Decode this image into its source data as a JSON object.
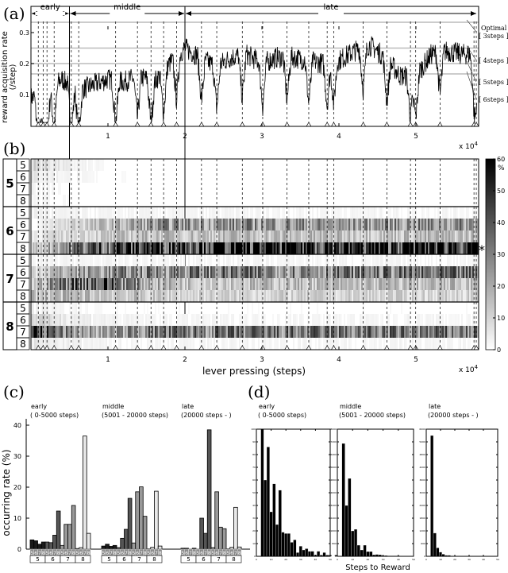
{
  "panel_labels": {
    "a": "(a)",
    "b": "(b)",
    "c": "(c)",
    "d": "(d)"
  },
  "chart_data": [
    {
      "id": "a",
      "type": "line",
      "ylabel": "reward acquisition rate",
      "ylabel2": "(/step)",
      "xlim": [
        0,
        58000
      ],
      "ylim": [
        0,
        0.34
      ],
      "xticks": [
        10000,
        20000,
        30000,
        40000,
        50000
      ],
      "xtick_labels": [
        "1",
        "2",
        "3",
        "4",
        "5"
      ],
      "yticks": [
        0.1,
        0.2,
        0.3
      ],
      "ytick_labels": [
        "0.1",
        "0.2",
        "0.3"
      ],
      "x_multiplier": "x 10",
      "x_multiplier_exp": "4",
      "phases": [
        {
          "label": "early",
          "start": 0,
          "end": 5000
        },
        {
          "label": "middle",
          "start": 5000,
          "end": 20000
        },
        {
          "label": "late",
          "start": 20000,
          "end": 58000
        }
      ],
      "reference_lines": [
        {
          "value": 0.3333,
          "label": "Optimal",
          "label2": "[ 3steps ]"
        },
        {
          "value": 0.25,
          "label": "[ 4steps ]"
        },
        {
          "value": 0.2,
          "label": "[ 5steps ]"
        },
        {
          "value": 0.1667,
          "label": "[ 6steps ]"
        }
      ],
      "bin_size": 2000,
      "mean_rate_per_bin": [
        0.09,
        0.1,
        0.15,
        0.11,
        0.13,
        0.15,
        0.14,
        0.16,
        0.14,
        0.2,
        0.25,
        0.22,
        0.19,
        0.22,
        0.23,
        0.2,
        0.22,
        0.22,
        0.21,
        0.2,
        0.21,
        0.24,
        0.26,
        0.22,
        0.16,
        0.16,
        0.23,
        0.24,
        0.23
      ],
      "change_markers": [
        950,
        1580,
        2080,
        3010,
        5240,
        6200,
        11000,
        13830,
        15590,
        17230,
        18910,
        22150,
        24130,
        27450,
        30100,
        33260,
        36080,
        38470,
        39320,
        43160,
        46220,
        49290,
        49970,
        53130,
        57540,
        57840
      ]
    },
    {
      "id": "b",
      "type": "heatmap",
      "xlabel": "lever pressing (steps)",
      "xlim": [
        0,
        58000
      ],
      "xtick_labels": [
        "1",
        "2",
        "3",
        "4",
        "5"
      ],
      "x_multiplier": "x 10",
      "x_multiplier_exp": "4",
      "groups": [
        "5",
        "6",
        "7",
        "8"
      ],
      "subrows": [
        "5",
        "6",
        "7",
        "8"
      ],
      "colorbar": {
        "min": 0,
        "max": 60,
        "ticks": [
          "0",
          "10",
          "20",
          "30",
          "40",
          "50",
          "60"
        ],
        "unit": "%"
      },
      "marker": "*",
      "bin_size": 5000,
      "row_intensity_percent": [
        [
          10,
          3,
          1,
          0,
          0,
          0,
          0,
          0,
          0,
          0,
          0,
          0
        ],
        [
          5,
          2,
          1,
          1,
          0,
          0,
          0,
          0,
          0,
          0,
          0,
          0
        ],
        [
          2,
          1,
          0,
          0,
          0,
          0,
          0,
          0,
          0,
          0,
          0,
          0
        ],
        [
          2,
          1,
          0,
          0,
          0,
          0,
          0,
          0,
          0,
          0,
          0,
          0
        ],
        [
          3,
          2,
          2,
          2,
          2,
          2,
          2,
          2,
          2,
          2,
          2,
          2
        ],
        [
          0,
          10,
          15,
          22,
          25,
          25,
          25,
          25,
          22,
          25,
          25,
          25
        ],
        [
          5,
          10,
          12,
          15,
          15,
          15,
          15,
          15,
          15,
          15,
          15,
          15
        ],
        [
          10,
          30,
          42,
          50,
          55,
          55,
          55,
          55,
          50,
          50,
          55,
          55
        ],
        [
          2,
          2,
          2,
          2,
          2,
          2,
          2,
          2,
          2,
          2,
          2,
          2
        ],
        [
          10,
          20,
          25,
          28,
          30,
          30,
          30,
          30,
          30,
          30,
          30,
          30
        ],
        [
          10,
          38,
          40,
          20,
          15,
          15,
          15,
          15,
          15,
          15,
          15,
          15
        ],
        [
          15,
          15,
          15,
          12,
          10,
          10,
          10,
          10,
          10,
          10,
          10,
          10
        ],
        [
          3,
          2,
          1,
          1,
          1,
          1,
          1,
          1,
          1,
          1,
          1,
          1
        ],
        [
          10,
          5,
          3,
          2,
          2,
          2,
          2,
          2,
          2,
          2,
          2,
          2
        ],
        [
          45,
          25,
          20,
          30,
          30,
          30,
          30,
          30,
          30,
          30,
          30,
          30
        ],
        [
          5,
          3,
          2,
          2,
          2,
          2,
          2,
          2,
          2,
          2,
          2,
          2
        ]
      ]
    },
    {
      "id": "c",
      "type": "bar",
      "ylabel": "occurring rate (%)",
      "ylim": [
        0,
        42
      ],
      "yticks": [
        "0",
        "10",
        "20",
        "30",
        "40"
      ],
      "groups": [
        "5",
        "6",
        "7",
        "8"
      ],
      "subcategories": [
        "5",
        "6",
        "7",
        "8"
      ],
      "group_colors": [
        "#1a1a1a",
        "#555555",
        "#999999",
        "#e8e8e8"
      ],
      "panels": [
        {
          "title": "early",
          "subtitle": "( 0-5000 steps)",
          "values": [
            3.0,
            2.7,
            1.6,
            2.3,
            2.3,
            2.1,
            4.5,
            12.3,
            1.2,
            8.0,
            8.0,
            14.1,
            0.2,
            0.5,
            36.5,
            5.1
          ]
        },
        {
          "title": "middle",
          "subtitle": "(5001 - 20000 steps)",
          "values": [
            1.0,
            1.6,
            0.9,
            1.2,
            0.5,
            3.5,
            6.4,
            16.4,
            2.0,
            18.5,
            20.1,
            10.6,
            0.1,
            0.6,
            18.7,
            1.0
          ]
        },
        {
          "title": "late",
          "subtitle": "(20000 steps - )",
          "values": [
            0.3,
            0.3,
            0.0,
            0.3,
            0.0,
            10.0,
            5.1,
            38.5,
            0.5,
            18.5,
            7.1,
            6.6,
            0.1,
            0.6,
            13.5,
            0.7
          ]
        }
      ]
    },
    {
      "id": "d",
      "type": "bar",
      "xlabel": "Steps to Reward",
      "xlim": [
        0,
        50
      ],
      "bin_width": 2,
      "panels": [
        {
          "title": "early",
          "subtitle": "( 0-5000 steps)",
          "ymax": 100,
          "bin_start": 3,
          "values": [
            100,
            60,
            86,
            35,
            57,
            25,
            52,
            19,
            18,
            18,
            11,
            13,
            3,
            8,
            5,
            6,
            4,
            4,
            1,
            4,
            1,
            3,
            1,
            1,
            0,
            1
          ]
        },
        {
          "title": "middle",
          "subtitle": "(5001 - 20000 steps)",
          "ymax": 8000,
          "bin_start": 3,
          "values": [
            7100,
            3200,
            4900,
            1600,
            1700,
            700,
            400,
            700,
            300,
            300,
            100,
            120,
            100,
            50,
            50,
            30,
            30,
            30,
            30,
            20
          ]
        },
        {
          "title": "late",
          "subtitle": "(20000 steps - )",
          "ymax": 6000,
          "bin_start": 3,
          "values": [
            5700,
            1100,
            400,
            200,
            100,
            50,
            50,
            20,
            10
          ]
        }
      ]
    }
  ]
}
